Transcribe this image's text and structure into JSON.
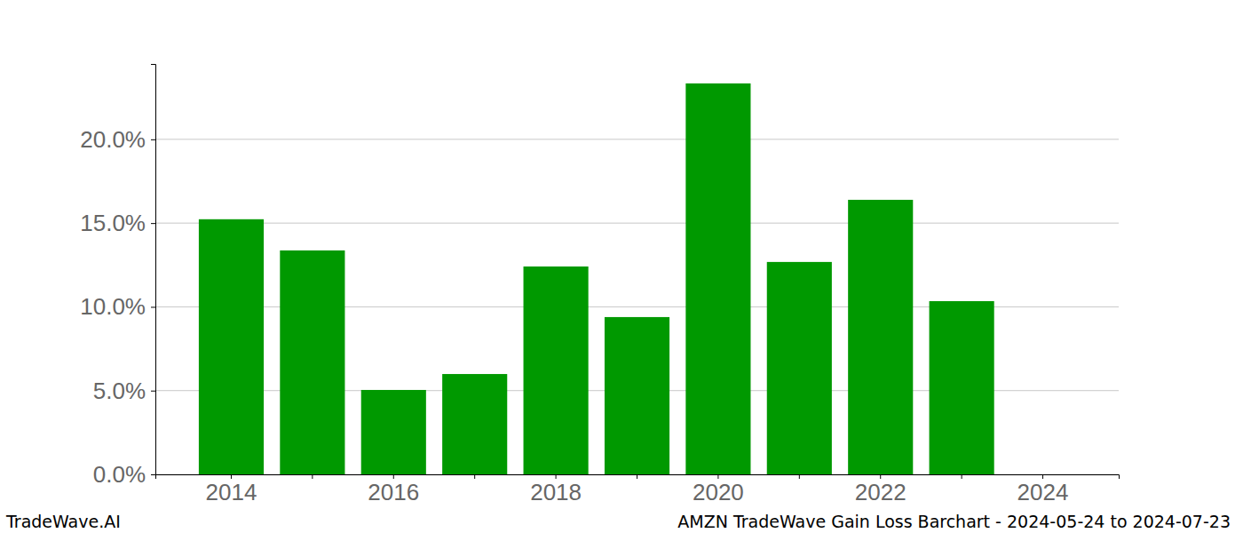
{
  "chart_data": {
    "type": "bar",
    "title": "AMZN TradeWave Gain Loss Barchart - 2024-05-24 to 2024-07-23",
    "annotations": [
      "TradeWave.AI"
    ],
    "categories": [
      "2014",
      null,
      "2016",
      null,
      "2018",
      null,
      "2020",
      null,
      "2022",
      null,
      "2024"
    ],
    "values": [
      15.23,
      13.37,
      5.04,
      5.99,
      12.41,
      9.39,
      23.34,
      12.68,
      16.39,
      10.34,
      null
    ],
    "color": "#009900",
    "ylim": [
      0,
      24.5
    ],
    "yticks": [
      {
        "value": 0,
        "label": "0.0%"
      },
      {
        "value": 5,
        "label": "5.0%"
      },
      {
        "value": 10,
        "label": "10.0%"
      },
      {
        "value": 15,
        "label": "15.0%"
      },
      {
        "value": 20,
        "label": "20.0%"
      }
    ],
    "grid": true
  }
}
